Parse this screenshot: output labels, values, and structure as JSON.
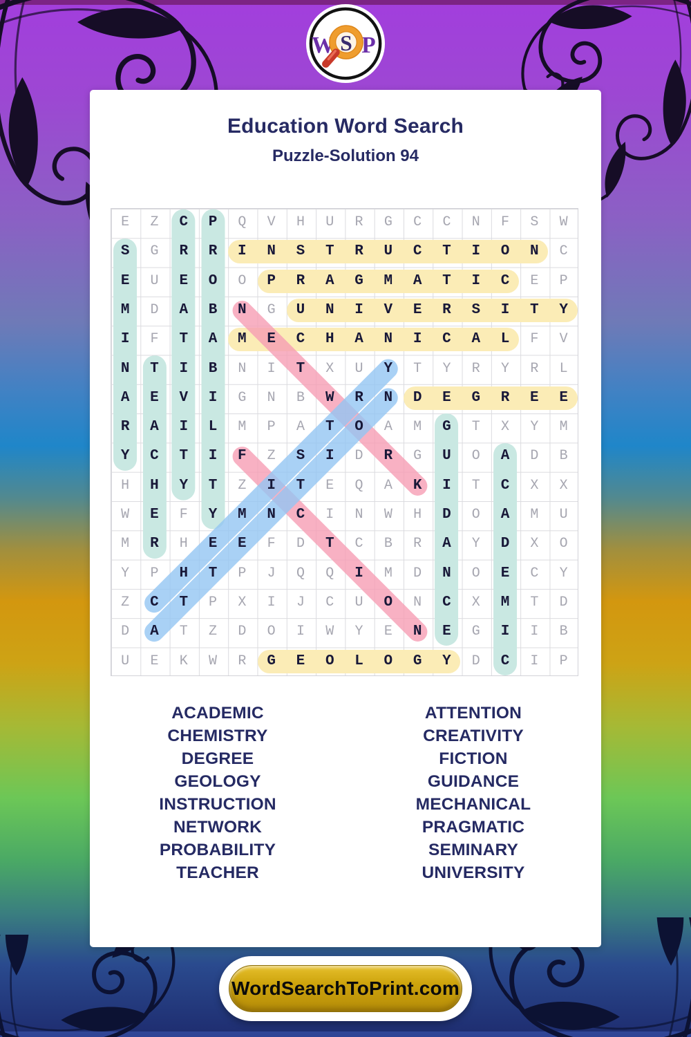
{
  "header": {
    "title": "Education Word Search",
    "subtitle": "Puzzle-Solution 94"
  },
  "logo": {
    "w": "W",
    "s": "S",
    "p": "P"
  },
  "grid": {
    "size": 16,
    "rows": [
      "EZCPQVHURGCCNFSW",
      "SGRRINSTRUCTIONC",
      "EUEOOPRAGMATICEP",
      "MDABNGUNIVERSITY",
      "IFTAMECHANICALFV",
      "NTIBNITXUYTYRYRL",
      "AEVIGNBWRNDEGREE",
      "RAILMPATOAMGTXYM",
      "YCTIFZSIDRGUOADB",
      "HHYTZITEQAKITCXX",
      "WEFYMNCINWHDOAMU",
      "MRHEEFDTCBRAYDXO",
      "YPHTPJQQIMDNOECY",
      "ZCTPXIJCUONCXMTD",
      "DATZDOIWYENEGIIB",
      "UEKWRGEOLOGYDCIP"
    ]
  },
  "solutions": [
    {
      "word": "CREATIVITY",
      "row": 1,
      "col": 3,
      "dir": "down",
      "color": "teal"
    },
    {
      "word": "PROBABILITY",
      "row": 1,
      "col": 4,
      "dir": "down",
      "color": "teal"
    },
    {
      "word": "SEMINARY",
      "row": 2,
      "col": 1,
      "dir": "down",
      "color": "teal"
    },
    {
      "word": "TEACHER",
      "row": 6,
      "col": 2,
      "dir": "down",
      "color": "teal"
    },
    {
      "word": "GUIDANCE",
      "row": 8,
      "col": 12,
      "dir": "down",
      "color": "teal"
    },
    {
      "word": "ACADEMIC",
      "row": 9,
      "col": 14,
      "dir": "down",
      "color": "teal"
    },
    {
      "word": "INSTRUCTION",
      "row": 2,
      "col": 5,
      "dir": "right",
      "color": "yellow"
    },
    {
      "word": "PRAGMATIC",
      "row": 3,
      "col": 6,
      "dir": "right",
      "color": "yellow"
    },
    {
      "word": "UNIVERSITY",
      "row": 4,
      "col": 7,
      "dir": "right",
      "color": "yellow"
    },
    {
      "word": "MECHANICAL",
      "row": 5,
      "col": 5,
      "dir": "right",
      "color": "yellow"
    },
    {
      "word": "DEGREE",
      "row": 7,
      "col": 11,
      "dir": "right",
      "color": "yellow"
    },
    {
      "word": "GEOLOGY",
      "row": 16,
      "col": 6,
      "dir": "right",
      "color": "yellow"
    },
    {
      "word": "NETWORK",
      "row": 4,
      "col": 5,
      "dir": "down-right",
      "color": "pink"
    },
    {
      "word": "FICTION",
      "row": 9,
      "col": 5,
      "dir": "down-right",
      "color": "pink"
    },
    {
      "word": "CHEMISTRY",
      "row": 14,
      "col": 2,
      "dir": "up-right",
      "color": "blue"
    },
    {
      "word": "ATTENTION",
      "row": 15,
      "col": 2,
      "dir": "up-right",
      "color": "blue"
    }
  ],
  "word_list": {
    "left": [
      "ACADEMIC",
      "CHEMISTRY",
      "DEGREE",
      "GEOLOGY",
      "INSTRUCTION",
      "NETWORK",
      "PROBABILITY",
      "TEACHER"
    ],
    "right": [
      "ATTENTION",
      "CREATIVITY",
      "FICTION",
      "GUIDANCE",
      "MECHANICAL",
      "PRAGMATIC",
      "SEMINARY",
      "UNIVERSITY"
    ]
  },
  "footer": {
    "button_label": "WordSearchToPrint.com"
  },
  "colors": {
    "teal": "#c9e8e2",
    "yellow": "#fbecb6",
    "pink": "rgba(246,158,180,0.8)",
    "blue": "rgba(148,198,242,0.8)",
    "title": "#262a63",
    "letter": "#a6a6b0",
    "letter_hit": "#181838",
    "button_gold": "#cda30c"
  }
}
